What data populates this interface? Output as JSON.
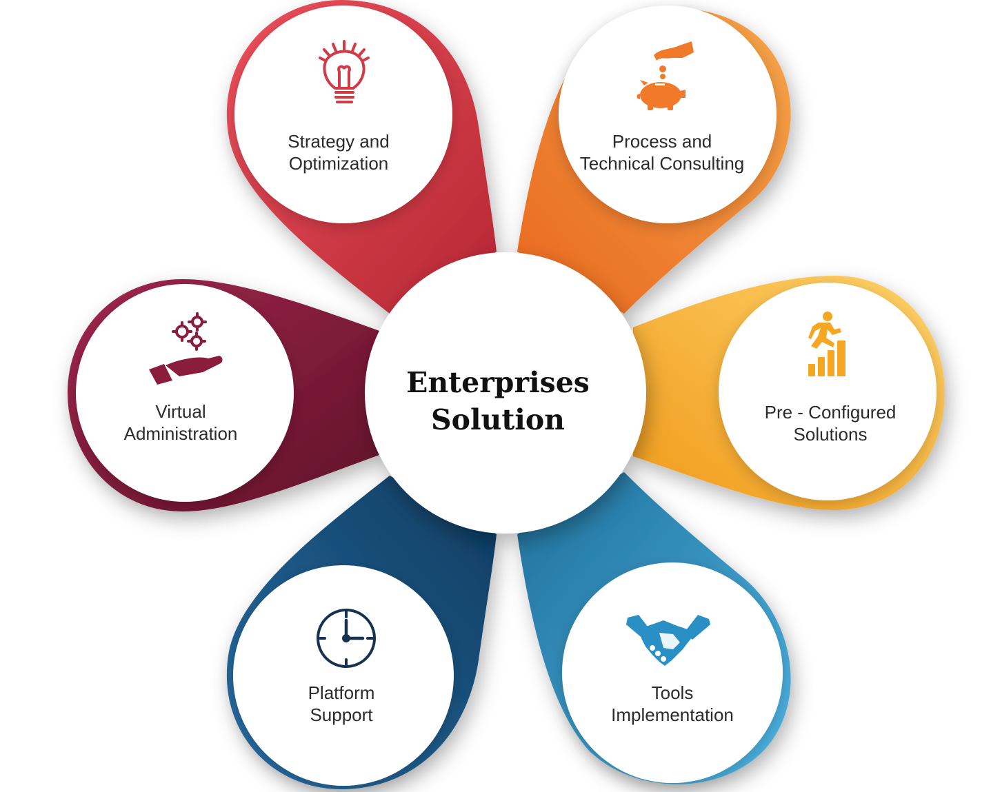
{
  "title": {
    "line1": "Enterprises",
    "line2": "Solution"
  },
  "nodes": [
    {
      "id": "strategy",
      "icon": "lightbulb-icon",
      "color": "#d23a45",
      "line1": "Strategy and",
      "line2": "Optimization"
    },
    {
      "id": "process",
      "icon": "piggy-bank-coin-icon",
      "color": "#f07a2a",
      "line1": "Process and",
      "line2": "Technical Consulting"
    },
    {
      "id": "preconfigured",
      "icon": "climbing-growth-chart-icon",
      "color": "#f5a623",
      "line1": "Pre - Configured",
      "line2": "Solutions"
    },
    {
      "id": "tools",
      "icon": "handshake-icon",
      "color": "#2a8fc4",
      "line1": "Tools",
      "line2": "Implementation"
    },
    {
      "id": "platform",
      "icon": "clock-icon",
      "color": "#1b4f7c",
      "line1": "Platform",
      "line2": "Support"
    },
    {
      "id": "virtual",
      "icon": "hand-gears-icon",
      "color": "#8a1c3c",
      "line1": "Virtual",
      "line2": "Administration"
    }
  ],
  "colors": {
    "strategy_light": "#f0525e",
    "strategy_dark": "#b32632",
    "process_light": "#f7a64a",
    "process_dark": "#e8671f",
    "preconfigured_light": "#ffd36b",
    "preconfigured_dark": "#f09a1a",
    "tools_light": "#4fb6e4",
    "tools_dark": "#1f6f9a",
    "platform_light": "#2a6fa5",
    "platform_dark": "#0d3a5e",
    "virtual_light": "#a3284f",
    "virtual_dark": "#5e1029"
  }
}
